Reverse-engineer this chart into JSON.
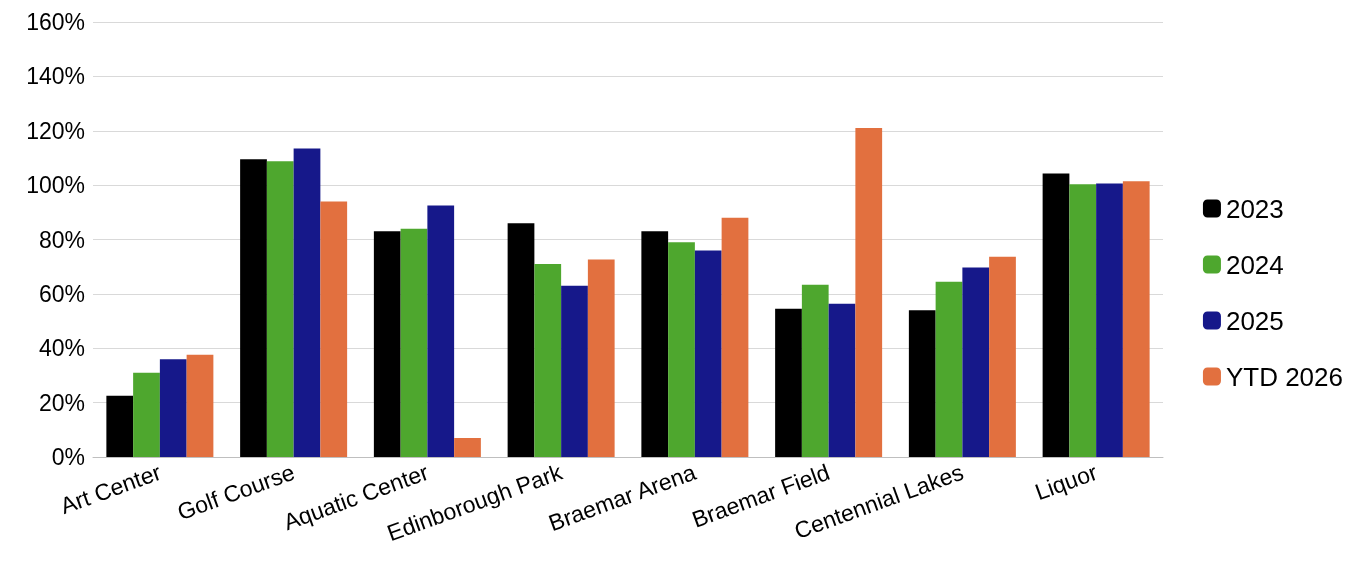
{
  "chart_data": {
    "type": "bar",
    "categories": [
      "Art Center",
      "Golf Course",
      "Aquatic Center",
      "Edinborough Park",
      "Braemar Arena",
      "Braemar Field",
      "Centennial Lakes",
      "Liquor"
    ],
    "series": [
      {
        "name": "2023",
        "color": "#000000",
        "values": [
          22.5,
          109.5,
          83,
          86,
          83,
          54.5,
          54,
          104.3
        ]
      },
      {
        "name": "2024",
        "color": "#4ea72e",
        "values": [
          31,
          108.8,
          84,
          71,
          79,
          63.4,
          64.5,
          100.3
        ]
      },
      {
        "name": "2025",
        "color": "#16188a",
        "values": [
          36,
          113.5,
          92.5,
          63,
          76,
          56.4,
          69.7,
          100.6
        ]
      },
      {
        "name": "YTD 2026",
        "color": "#e2703f",
        "values": [
          37.6,
          94,
          7,
          72.6,
          88,
          121,
          73.7,
          101.4
        ]
      }
    ],
    "ylim": [
      0,
      160
    ],
    "yticks": [
      {
        "value": 0,
        "label": "0%"
      },
      {
        "value": 20,
        "label": "20%"
      },
      {
        "value": 40,
        "label": "40%"
      },
      {
        "value": 60,
        "label": "60%"
      },
      {
        "value": 80,
        "label": "80%"
      },
      {
        "value": 100,
        "label": "100%"
      },
      {
        "value": 120,
        "label": "120%"
      },
      {
        "value": 140,
        "label": "140%"
      },
      {
        "value": 160,
        "label": "160%"
      }
    ],
    "grid": "y",
    "legend": "right"
  }
}
